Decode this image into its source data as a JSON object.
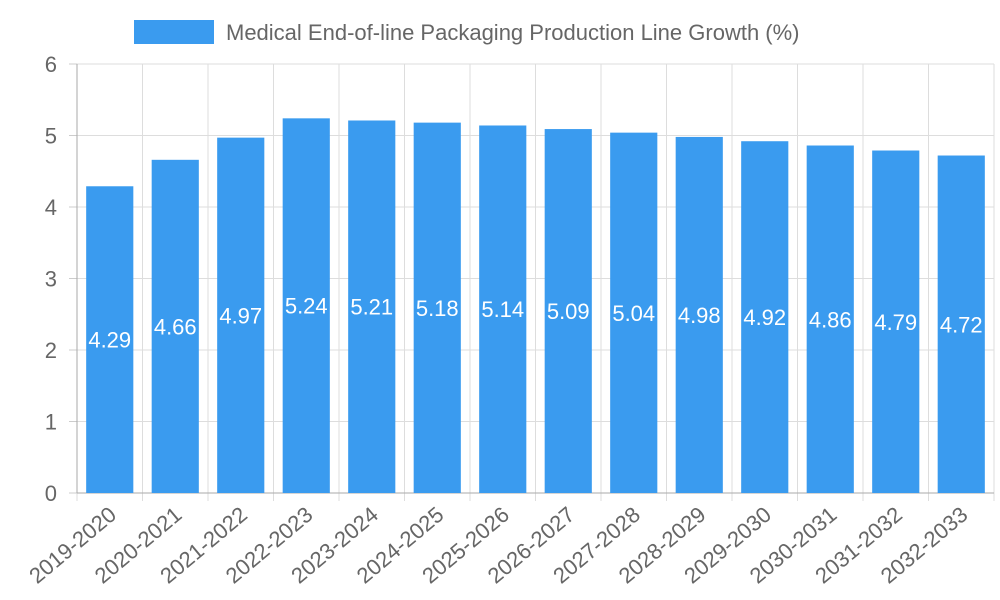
{
  "chart_data": {
    "type": "bar",
    "title": "",
    "xlabel": "",
    "ylabel": "",
    "legend": {
      "position": "top",
      "entries": [
        "Medical End-of-line Packaging Production Line Growth (%)"
      ]
    },
    "grid": true,
    "ylim": [
      0,
      6
    ],
    "yticks": [
      "0",
      "1",
      "2",
      "3",
      "4",
      "5",
      "6"
    ],
    "categories": [
      "2019-2020",
      "2020-2021",
      "2021-2022",
      "2022-2023",
      "2023-2024",
      "2024-2025",
      "2025-2026",
      "2026-2027",
      "2027-2028",
      "2028-2029",
      "2029-2030",
      "2030-2031",
      "2031-2032",
      "2032-2033"
    ],
    "series": [
      {
        "name": "Medical End-of-line Packaging Production Line Growth (%)",
        "color": "#3a9bef",
        "values": [
          4.29,
          4.66,
          4.97,
          5.24,
          5.21,
          5.18,
          5.14,
          5.09,
          5.04,
          4.98,
          4.92,
          4.86,
          4.79,
          4.72
        ],
        "labels": [
          "4.29",
          "4.66",
          "4.97",
          "5.24",
          "5.21",
          "5.18",
          "5.14",
          "5.09",
          "5.04",
          "4.98",
          "4.92",
          "4.86",
          "4.79",
          "4.72"
        ]
      }
    ]
  }
}
